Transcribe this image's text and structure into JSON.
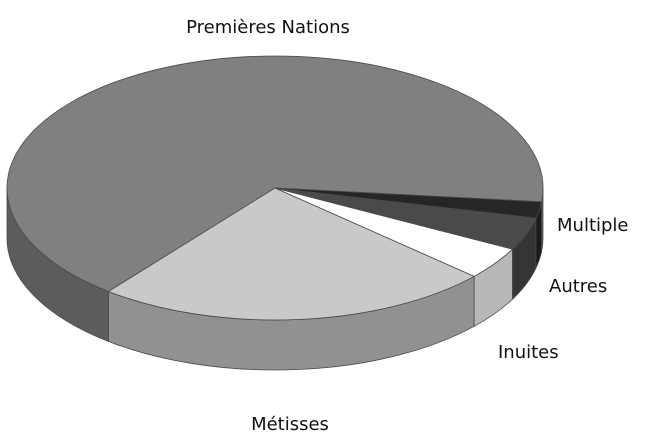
{
  "chart_data": {
    "type": "pie3d",
    "categories": [
      "Premières Nations",
      "Métisses",
      "Inuites",
      "Autres",
      "Multiple"
    ],
    "values": [
      66,
      24,
      4,
      4,
      2
    ],
    "colors": [
      "#808080",
      "#c9c9c9",
      "#ffffff",
      "#4a4a4a",
      "#262626"
    ]
  }
}
